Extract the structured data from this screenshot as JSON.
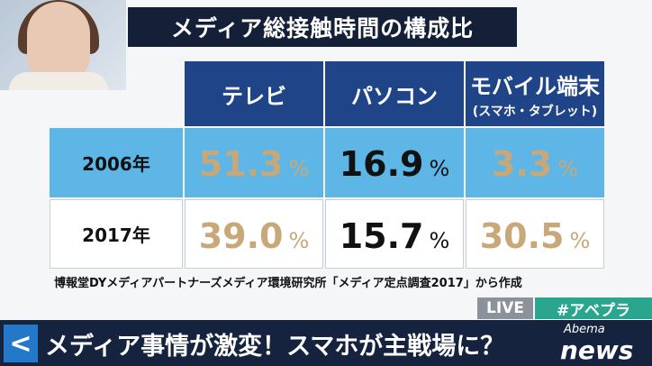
{
  "title": "メディア総接触時間の構成比",
  "table": {
    "columns": [
      {
        "label": "テレビ"
      },
      {
        "label": "パソコン"
      },
      {
        "label": "モバイル端末",
        "sublabel": "(スマホ・タブレット)"
      }
    ],
    "rows": [
      {
        "label": "2006年",
        "cells": [
          {
            "number": "51.3",
            "unit": "%"
          },
          {
            "number": "16.9",
            "unit": "%"
          },
          {
            "number": "3.3",
            "unit": "%"
          }
        ]
      },
      {
        "label": "2017年",
        "cells": [
          {
            "number": "39.0",
            "unit": "%"
          },
          {
            "number": "15.7",
            "unit": "%"
          },
          {
            "number": "30.5",
            "unit": "%"
          }
        ]
      }
    ]
  },
  "source": "博報堂DYメディアパートナーズメディア環境研究所「メディア定点調査2017」から作成",
  "live": "LIVE",
  "hashtag": "#アベプラ",
  "back": "<",
  "caption": "メディア事情が激変！スマホが主戦場に？",
  "logo": {
    "top": "Abema",
    "bottom": "news"
  }
}
